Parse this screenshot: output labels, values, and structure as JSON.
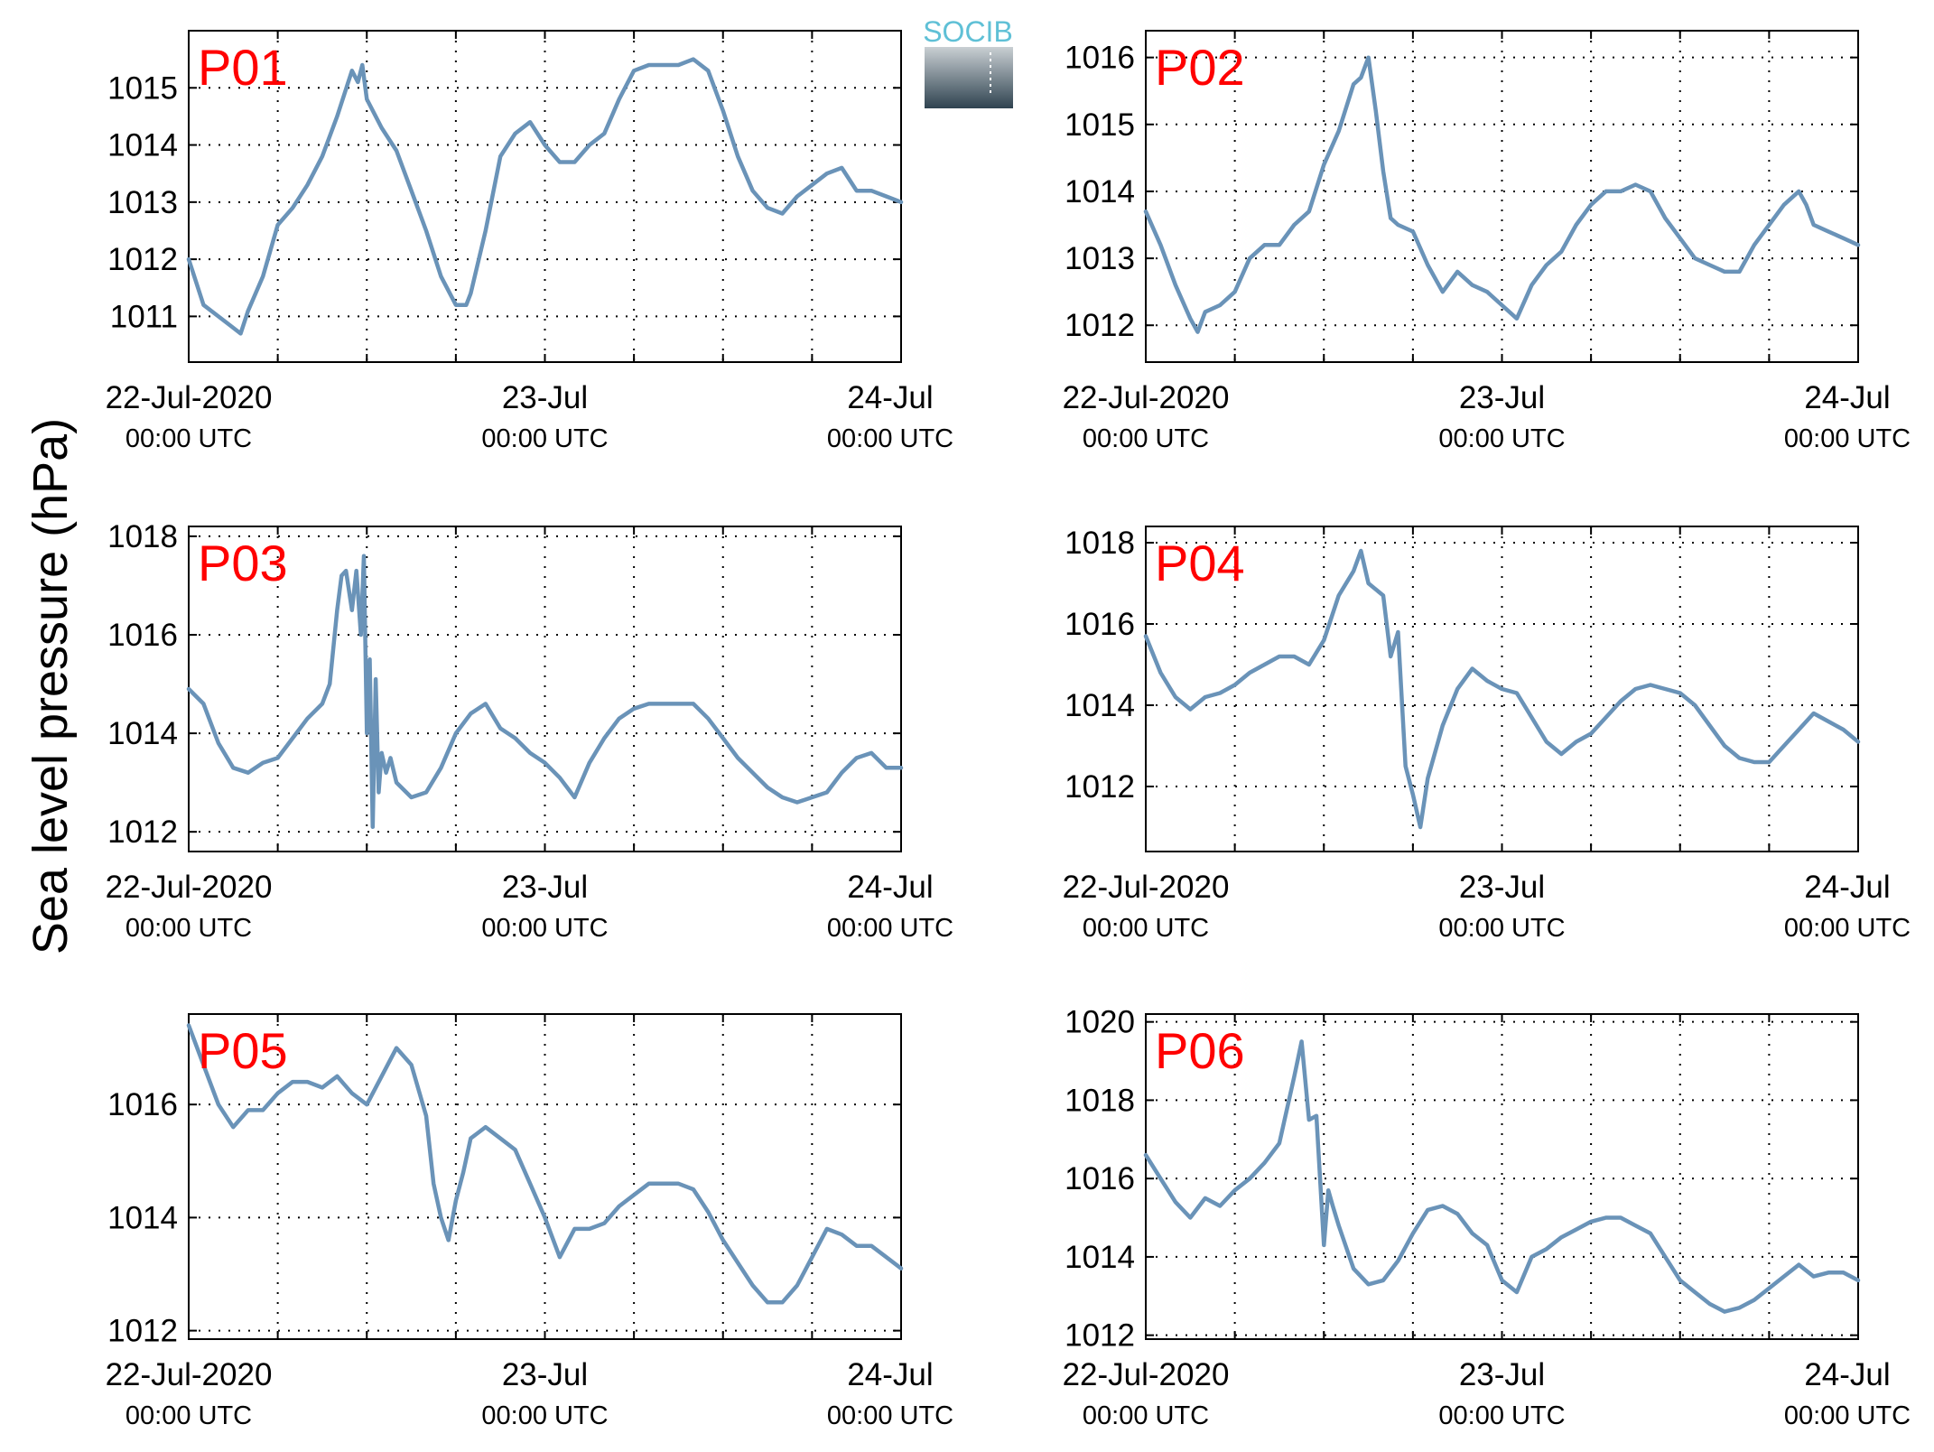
{
  "figure": {
    "ylabel": "Sea level pressure (hPa)",
    "logo_text": "SOCIB",
    "colors": {
      "line": "#6a93b8",
      "station_label": "#ff0000",
      "axes": "#000000",
      "grid": "#000000",
      "logo_text": "#5fc0d6",
      "logo_top": "#c9cfd3",
      "logo_bottom": "#2f4350"
    }
  },
  "chart_data": [
    {
      "type": "line",
      "station": "P01",
      "xlim": [
        0,
        48
      ],
      "ylim": [
        1010.2,
        1016.0
      ],
      "yticks": [
        1011,
        1012,
        1013,
        1014,
        1015
      ],
      "xtick_hours": [
        0,
        24,
        48
      ],
      "minor_grid_hours": [
        6,
        12,
        18,
        30,
        36,
        42
      ],
      "xtick_labels": [
        [
          "22-Jul-2020",
          "00:00 UTC"
        ],
        [
          "23-Jul",
          "00:00 UTC"
        ],
        [
          "24-Jul",
          "00:00 UTC"
        ]
      ],
      "grid": true,
      "x": [
        0,
        1,
        2,
        3,
        3.5,
        4,
        5,
        6,
        7,
        8,
        9,
        10,
        11,
        11.4,
        11.7,
        12,
        13,
        14,
        15,
        16,
        17,
        18,
        18.7,
        19,
        20,
        21,
        22,
        23,
        24,
        25,
        26,
        27,
        28,
        29,
        30,
        31,
        32,
        33,
        34,
        35,
        36,
        37,
        38,
        39,
        40,
        41,
        42,
        43,
        44,
        44.5,
        45,
        46,
        47,
        48
      ],
      "y": [
        1012.0,
        1011.2,
        1011.0,
        1010.8,
        1010.7,
        1011.1,
        1011.7,
        1012.6,
        1012.9,
        1013.3,
        1013.8,
        1014.5,
        1015.3,
        1015.1,
        1015.4,
        1014.8,
        1014.3,
        1013.9,
        1013.2,
        1012.5,
        1011.7,
        1011.2,
        1011.2,
        1011.4,
        1012.5,
        1013.8,
        1014.2,
        1014.4,
        1014.0,
        1013.7,
        1013.7,
        1014.0,
        1014.2,
        1014.8,
        1015.3,
        1015.4,
        1015.4,
        1015.4,
        1015.5,
        1015.3,
        1014.6,
        1013.8,
        1013.2,
        1012.9,
        1012.8,
        1013.1,
        1013.3,
        1013.5,
        1013.6,
        1013.4,
        1013.2,
        1013.2,
        1013.1,
        1013.0
      ]
    },
    {
      "type": "line",
      "station": "P02",
      "xlim": [
        0,
        48
      ],
      "ylim": [
        1011.45,
        1016.4
      ],
      "yticks": [
        1012,
        1013,
        1014,
        1015,
        1016
      ],
      "xtick_hours": [
        0,
        24,
        48
      ],
      "minor_grid_hours": [
        6,
        12,
        18,
        30,
        36,
        42
      ],
      "xtick_labels": [
        [
          "22-Jul-2020",
          "00:00 UTC"
        ],
        [
          "23-Jul",
          "00:00 UTC"
        ],
        [
          "24-Jul",
          "00:00 UTC"
        ]
      ],
      "grid": true,
      "x": [
        0,
        1,
        2,
        3,
        3.5,
        4,
        5,
        6,
        7,
        8,
        9,
        10,
        11,
        12,
        13,
        14,
        14.5,
        15,
        15.5,
        16,
        16.5,
        17,
        18,
        19,
        20,
        21,
        22,
        23,
        24,
        25,
        26,
        27,
        28,
        29,
        30,
        31,
        32,
        33,
        34,
        35,
        36,
        37,
        38,
        39,
        40,
        41,
        42,
        43,
        44,
        44.5,
        45,
        46,
        47,
        48
      ],
      "y": [
        1013.7,
        1013.2,
        1012.6,
        1012.1,
        1011.9,
        1012.2,
        1012.3,
        1012.5,
        1013.0,
        1013.2,
        1013.2,
        1013.5,
        1013.7,
        1014.4,
        1014.9,
        1015.6,
        1015.7,
        1016.0,
        1015.2,
        1014.3,
        1013.6,
        1013.5,
        1013.4,
        1012.9,
        1012.5,
        1012.8,
        1012.6,
        1012.5,
        1012.3,
        1012.1,
        1012.6,
        1012.9,
        1013.1,
        1013.5,
        1013.8,
        1014.0,
        1014.0,
        1014.1,
        1014.0,
        1013.6,
        1013.3,
        1013.0,
        1012.9,
        1012.8,
        1012.8,
        1013.2,
        1013.5,
        1013.8,
        1014.0,
        1013.8,
        1013.5,
        1013.4,
        1013.3,
        1013.2
      ]
    },
    {
      "type": "line",
      "station": "P03",
      "xlim": [
        0,
        48
      ],
      "ylim": [
        1011.6,
        1018.2
      ],
      "yticks": [
        1012,
        1014,
        1016,
        1018
      ],
      "xtick_hours": [
        0,
        24,
        48
      ],
      "minor_grid_hours": [
        6,
        12,
        18,
        30,
        36,
        42
      ],
      "xtick_labels": [
        [
          "22-Jul-2020",
          "00:00 UTC"
        ],
        [
          "23-Jul",
          "00:00 UTC"
        ],
        [
          "24-Jul",
          "00:00 UTC"
        ]
      ],
      "grid": true,
      "x": [
        0,
        1,
        2,
        3,
        4,
        5,
        6,
        7,
        8,
        9,
        9.5,
        10,
        10.3,
        10.6,
        11,
        11.3,
        11.6,
        11.8,
        12,
        12.2,
        12.4,
        12.6,
        12.8,
        13,
        13.3,
        13.6,
        14,
        15,
        16,
        17,
        18,
        19,
        20,
        21,
        22,
        23,
        24,
        25,
        26,
        27,
        28,
        29,
        30,
        31,
        32,
        33,
        34,
        35,
        36,
        37,
        38,
        39,
        40,
        41,
        42,
        43,
        44,
        45,
        46,
        47,
        48
      ],
      "y": [
        1014.9,
        1014.6,
        1013.8,
        1013.3,
        1013.2,
        1013.4,
        1013.5,
        1013.9,
        1014.3,
        1014.6,
        1015.0,
        1016.5,
        1017.2,
        1017.3,
        1016.5,
        1017.3,
        1016.0,
        1017.6,
        1014.0,
        1015.5,
        1012.1,
        1015.1,
        1012.8,
        1013.6,
        1013.2,
        1013.5,
        1013.0,
        1012.7,
        1012.8,
        1013.3,
        1014.0,
        1014.4,
        1014.6,
        1014.1,
        1013.9,
        1013.6,
        1013.4,
        1013.1,
        1012.7,
        1013.4,
        1013.9,
        1014.3,
        1014.5,
        1014.6,
        1014.6,
        1014.6,
        1014.6,
        1014.3,
        1013.9,
        1013.5,
        1013.2,
        1012.9,
        1012.7,
        1012.6,
        1012.7,
        1012.8,
        1013.2,
        1013.5,
        1013.6,
        1013.3,
        1013.3
      ]
    },
    {
      "type": "line",
      "station": "P04",
      "xlim": [
        0,
        48
      ],
      "ylim": [
        1010.4,
        1018.4
      ],
      "yticks": [
        1012,
        1014,
        1016,
        1018
      ],
      "xtick_hours": [
        0,
        24,
        48
      ],
      "minor_grid_hours": [
        6,
        12,
        18,
        30,
        36,
        42
      ],
      "xtick_labels": [
        [
          "22-Jul-2020",
          "00:00 UTC"
        ],
        [
          "23-Jul",
          "00:00 UTC"
        ],
        [
          "24-Jul",
          "00:00 UTC"
        ]
      ],
      "grid": true,
      "x": [
        0,
        1,
        2,
        3,
        4,
        5,
        6,
        7,
        8,
        9,
        10,
        11,
        12,
        13,
        14,
        14.5,
        15,
        16,
        16.5,
        17,
        17.5,
        18,
        18.5,
        19,
        20,
        21,
        22,
        23,
        24,
        25,
        26,
        27,
        28,
        29,
        30,
        31,
        32,
        33,
        34,
        35,
        36,
        37,
        38,
        39,
        40,
        41,
        42,
        43,
        44,
        45,
        46,
        47,
        48
      ],
      "y": [
        1015.7,
        1014.8,
        1014.2,
        1013.9,
        1014.2,
        1014.3,
        1014.5,
        1014.8,
        1015.0,
        1015.2,
        1015.2,
        1015.0,
        1015.6,
        1016.7,
        1017.3,
        1017.8,
        1017.0,
        1016.7,
        1015.2,
        1015.8,
        1012.5,
        1011.8,
        1011.0,
        1012.2,
        1013.5,
        1014.4,
        1014.9,
        1014.6,
        1014.4,
        1014.3,
        1013.7,
        1013.1,
        1012.8,
        1013.1,
        1013.3,
        1013.7,
        1014.1,
        1014.4,
        1014.5,
        1014.4,
        1014.3,
        1014.0,
        1013.5,
        1013.0,
        1012.7,
        1012.6,
        1012.6,
        1013.0,
        1013.4,
        1013.8,
        1013.6,
        1013.4,
        1013.1
      ]
    },
    {
      "type": "line",
      "station": "P05",
      "xlim": [
        0,
        48
      ],
      "ylim": [
        1011.85,
        1017.6
      ],
      "yticks": [
        1012,
        1014,
        1016
      ],
      "xtick_hours": [
        0,
        24,
        48
      ],
      "minor_grid_hours": [
        6,
        12,
        18,
        30,
        36,
        42
      ],
      "xtick_labels": [
        [
          "22-Jul-2020",
          "00:00 UTC"
        ],
        [
          "23-Jul",
          "00:00 UTC"
        ],
        [
          "24-Jul",
          "00:00 UTC"
        ]
      ],
      "grid": true,
      "x": [
        0,
        1,
        2,
        3,
        4,
        5,
        6,
        7,
        8,
        9,
        10,
        11,
        12,
        13,
        14,
        15,
        16,
        16.5,
        17,
        17.5,
        18,
        18.5,
        19,
        19.5,
        20,
        21,
        22,
        23,
        24,
        25,
        26,
        27,
        28,
        29,
        30,
        31,
        32,
        33,
        34,
        35,
        36,
        37,
        38,
        39,
        40,
        41,
        42,
        43,
        44,
        45,
        46,
        47,
        48
      ],
      "y": [
        1017.4,
        1016.7,
        1016.0,
        1015.6,
        1015.9,
        1015.9,
        1016.2,
        1016.4,
        1016.4,
        1016.3,
        1016.5,
        1016.2,
        1016.0,
        1016.5,
        1017.0,
        1016.7,
        1015.8,
        1014.6,
        1014.0,
        1013.6,
        1014.3,
        1014.8,
        1015.4,
        1015.5,
        1015.6,
        1015.4,
        1015.2,
        1014.6,
        1014.0,
        1013.3,
        1013.8,
        1013.8,
        1013.9,
        1014.2,
        1014.4,
        1014.6,
        1014.6,
        1014.6,
        1014.5,
        1014.1,
        1013.6,
        1013.2,
        1012.8,
        1012.5,
        1012.5,
        1012.8,
        1013.3,
        1013.8,
        1013.7,
        1013.5,
        1013.5,
        1013.3,
        1013.1
      ]
    },
    {
      "type": "line",
      "station": "P06",
      "xlim": [
        0,
        48
      ],
      "ylim": [
        1011.9,
        1020.2
      ],
      "yticks": [
        1012,
        1014,
        1016,
        1018,
        1020
      ],
      "xtick_hours": [
        0,
        24,
        48
      ],
      "minor_grid_hours": [
        6,
        12,
        18,
        30,
        36,
        42
      ],
      "xtick_labels": [
        [
          "22-Jul-2020",
          "00:00 UTC"
        ],
        [
          "23-Jul",
          "00:00 UTC"
        ],
        [
          "24-Jul",
          "00:00 UTC"
        ]
      ],
      "grid": true,
      "x": [
        0,
        1,
        2,
        3,
        4,
        5,
        6,
        7,
        8,
        9,
        10,
        10.5,
        11,
        11.5,
        12,
        12.3,
        12.6,
        13,
        14,
        15,
        16,
        17,
        18,
        19,
        20,
        21,
        22,
        23,
        24,
        25,
        26,
        27,
        28,
        29,
        30,
        31,
        32,
        33,
        34,
        35,
        36,
        37,
        38,
        39,
        40,
        41,
        42,
        43,
        44,
        45,
        46,
        47,
        48
      ],
      "y": [
        1016.6,
        1016.0,
        1015.4,
        1015.0,
        1015.5,
        1015.3,
        1015.7,
        1016.0,
        1016.4,
        1016.9,
        1018.6,
        1019.5,
        1017.5,
        1017.6,
        1014.3,
        1015.7,
        1015.3,
        1014.8,
        1013.7,
        1013.3,
        1013.4,
        1013.9,
        1014.6,
        1015.2,
        1015.3,
        1015.1,
        1014.6,
        1014.3,
        1013.4,
        1013.1,
        1014.0,
        1014.2,
        1014.5,
        1014.7,
        1014.9,
        1015.0,
        1015.0,
        1014.8,
        1014.6,
        1014.0,
        1013.4,
        1013.1,
        1012.8,
        1012.6,
        1012.7,
        1012.9,
        1013.2,
        1013.5,
        1013.8,
        1013.5,
        1013.6,
        1013.6,
        1013.4
      ]
    }
  ]
}
